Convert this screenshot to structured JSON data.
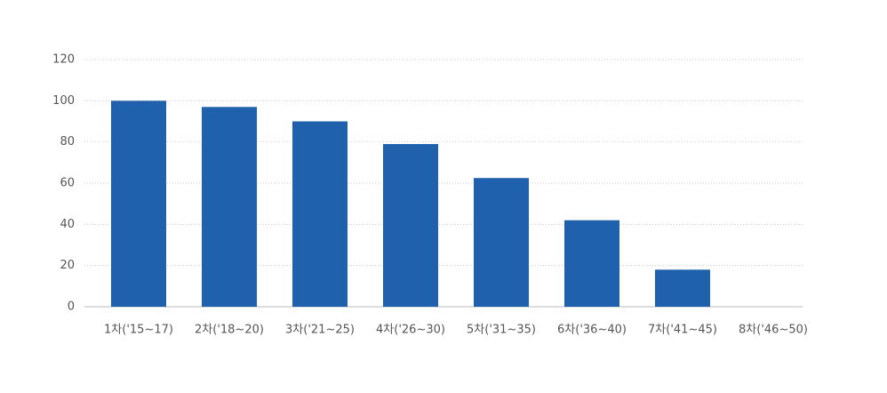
{
  "chart_data": {
    "type": "bar",
    "categories": [
      "1차('15~17)",
      "2차('18~20)",
      "3차('21~25)",
      "4차('26~30)",
      "5차('31~35)",
      "6차('36~40)",
      "7차('41~45)",
      "8차('46~50)"
    ],
    "values": [
      100,
      97,
      90,
      79,
      62.5,
      42,
      18,
      null
    ],
    "color": "#1f61ac",
    "ylim": [
      0,
      120
    ],
    "yticks": [
      0,
      20,
      40,
      60,
      80,
      100,
      120
    ],
    "grid": true
  }
}
